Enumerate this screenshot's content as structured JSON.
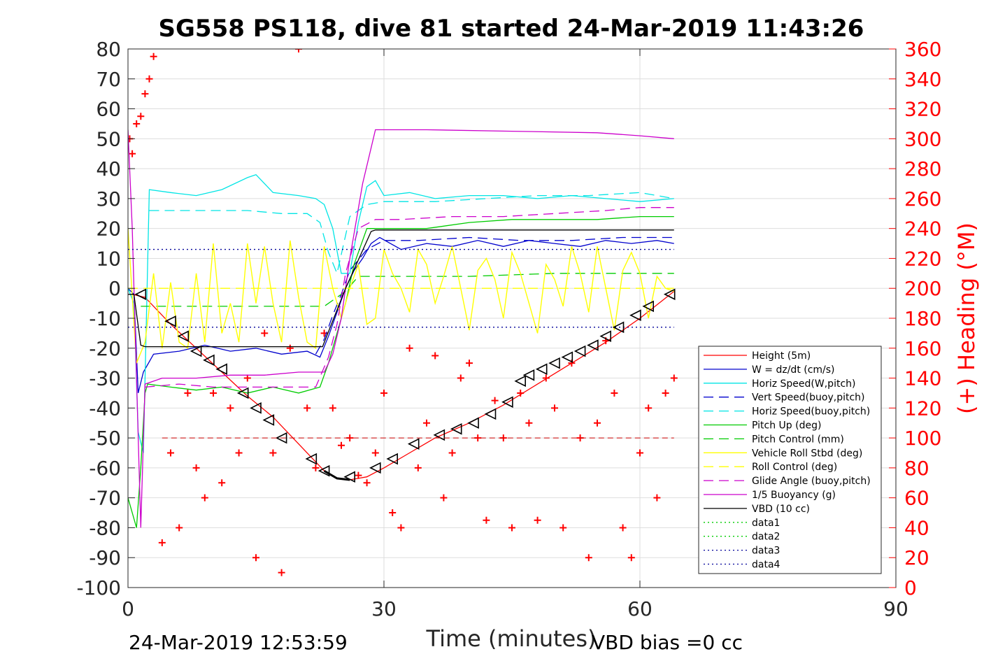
{
  "chart_data": {
    "type": "line",
    "title": "SG558 PS118, dive 81 started 24-Mar-2019 11:43:26",
    "xlabel": "Time (minutes)",
    "ylabel": "",
    "y2label": "(+) Heading (°M)",
    "xlim": [
      0,
      90
    ],
    "ylim": [
      -100,
      80
    ],
    "y2lim": [
      0,
      360
    ],
    "xticks": [
      "0",
      "30",
      "60",
      "90"
    ],
    "yticks": [
      "80",
      "70",
      "60",
      "50",
      "40",
      "30",
      "20",
      "10",
      "0",
      "-10",
      "-20",
      "-30",
      "-40",
      "-50",
      "-60",
      "-70",
      "-80",
      "-90",
      "-100"
    ],
    "y2ticks": [
      "360",
      "340",
      "320",
      "300",
      "280",
      "260",
      "240",
      "220",
      "200",
      "180",
      "160",
      "140",
      "120",
      "100",
      "80",
      "60",
      "40",
      "20",
      "0"
    ],
    "grid": true,
    "legend_position": "bottom-right",
    "footer_left": "24-Mar-2019 12:53:59",
    "footer_right": "VBD bias =0 cc",
    "colors": {
      "height": "#ff0000",
      "w": "#0000cd",
      "horiz_w": "#00e5e5",
      "vert_buoy": "#0000cd",
      "horiz_buoy": "#00e5e5",
      "pitch": "#00cc00",
      "pitch_ctl": "#00cc00",
      "roll": "#ffff00",
      "roll_ctl": "#ffff00",
      "glide": "#cc00cc",
      "buoy": "#cc00cc",
      "vbd": "#000000",
      "data1": "#00cc00",
      "data2": "#00cc00",
      "data3": "#000099",
      "data4": "#000099"
    },
    "series": [
      {
        "name": "Height (5m)",
        "key": "height",
        "style": "solid",
        "x": [
          0.5,
          2,
          5,
          8,
          11,
          14,
          17,
          20,
          23,
          24.5,
          26,
          28,
          30,
          33,
          36,
          40,
          44,
          48,
          52,
          56,
          60,
          64
        ],
        "y": [
          -2,
          -3,
          -12,
          -20,
          -28,
          -36,
          -43,
          -52,
          -61,
          -63.5,
          -64,
          -63,
          -60,
          -55,
          -50,
          -45,
          -39,
          -32,
          -25,
          -18,
          -10,
          -1
        ]
      },
      {
        "name": "W = dz/dt (cm/s)",
        "key": "w",
        "style": "solid",
        "x": [
          0,
          0.7,
          1.2,
          1.8,
          3,
          6,
          9,
          12,
          15,
          18,
          21,
          22.5,
          23.5,
          24.5,
          25.5,
          26.5,
          27.5,
          28.5,
          29.5,
          32,
          35,
          38,
          41,
          44,
          47,
          50,
          53,
          56,
          59,
          62,
          64
        ],
        "y": [
          0,
          -2,
          -35,
          -28,
          -22,
          -21,
          -19,
          -21,
          -20,
          -22,
          -21,
          -23,
          -16,
          -8,
          0,
          6,
          10,
          15,
          17,
          13,
          15,
          14,
          16,
          14,
          16,
          15,
          14,
          16,
          15,
          16,
          15
        ]
      },
      {
        "name": "Horiz Speed(W,pitch)",
        "key": "horiz_w",
        "style": "solid",
        "x": [
          0,
          0.7,
          1.2,
          1.8,
          2.5,
          5,
          8,
          11,
          14,
          15,
          17,
          20,
          22,
          23,
          24,
          25,
          26,
          27,
          28,
          29,
          30,
          33,
          36,
          40,
          44,
          48,
          52,
          56,
          60,
          64
        ],
        "y": [
          0,
          -5,
          -48,
          -55,
          33,
          32,
          31,
          33,
          37,
          38,
          32,
          31,
          30,
          28,
          20,
          5,
          5,
          22,
          34,
          36,
          31,
          32,
          30,
          31,
          31,
          30,
          31,
          30,
          29,
          30
        ]
      },
      {
        "name": "Vert Speed(buoy,pitch)",
        "key": "vert_buoy",
        "style": "dashed",
        "x": [
          22,
          23,
          24,
          25,
          26,
          28,
          30,
          34,
          40,
          46,
          52,
          58,
          62,
          64
        ],
        "y": [
          -22,
          -17,
          -9,
          -2,
          6,
          13,
          16,
          16,
          17,
          16,
          16,
          17,
          17,
          17
        ]
      },
      {
        "name": "Horiz Speed(buoy,pitch)",
        "key": "horiz_buoy",
        "style": "dashed",
        "x": [
          2.5,
          6,
          10,
          14,
          18,
          21,
          22.5,
          23.5,
          24.5,
          26,
          28,
          30,
          36,
          42,
          48,
          54,
          60,
          64
        ],
        "y": [
          26,
          26,
          26,
          26,
          25,
          25,
          22,
          12,
          5,
          24,
          28,
          29,
          29,
          30,
          31,
          31,
          32,
          30
        ]
      },
      {
        "name": "Pitch Up (deg)",
        "key": "pitch",
        "style": "solid",
        "x": [
          0,
          1,
          1.5,
          2,
          2.3,
          5,
          8,
          11,
          14,
          17,
          20,
          22.5,
          23.5,
          24.5,
          25.5,
          26.5,
          28,
          30,
          35,
          40,
          45,
          50,
          55,
          60,
          64
        ],
        "y": [
          -70,
          -80,
          -60,
          -35,
          -32,
          -33,
          -34,
          -33,
          -35,
          -33,
          -35,
          -33,
          -25,
          -15,
          -5,
          8,
          20,
          20,
          20,
          22,
          23,
          23,
          23,
          24,
          24
        ]
      },
      {
        "name": "Pitch Control (mm)",
        "key": "pitch_ctl",
        "style": "dashed",
        "x": [
          1.5,
          6,
          12,
          18,
          23,
          25.5,
          27,
          30,
          40,
          50,
          60,
          64
        ],
        "y": [
          -6,
          -6,
          -6,
          -6,
          -6,
          -1,
          4,
          4,
          4,
          5,
          5,
          5
        ]
      },
      {
        "name": "Vehicle Roll Stbd (deg)",
        "key": "roll",
        "style": "solid",
        "x": [
          0,
          1,
          2,
          3,
          4,
          5,
          6,
          7,
          8,
          9,
          10,
          11,
          12,
          13,
          14,
          15,
          16,
          17,
          18,
          19,
          20,
          21,
          22,
          23,
          24,
          25,
          26,
          27,
          28,
          29,
          30,
          31,
          32,
          33,
          34,
          35,
          36,
          37,
          38,
          39,
          40,
          41,
          42,
          43,
          44,
          45,
          46,
          47,
          48,
          49,
          50,
          51,
          52,
          53,
          54,
          55,
          56,
          57,
          58,
          59,
          60,
          61,
          62,
          63,
          64
        ],
        "y": [
          20,
          -25,
          -18,
          5,
          -20,
          2,
          -18,
          -20,
          5,
          -18,
          15,
          -15,
          -5,
          -18,
          15,
          -5,
          14,
          -5,
          -18,
          16,
          -3,
          -18,
          -20,
          14,
          0,
          -10,
          0,
          8,
          -12,
          -10,
          13,
          5,
          0,
          -8,
          13,
          8,
          -5,
          4,
          14,
          0,
          -14,
          6,
          10,
          3,
          -10,
          12,
          5,
          -5,
          -15,
          8,
          3,
          -6,
          14,
          5,
          -8,
          14,
          0,
          -14,
          6,
          12,
          5,
          -10,
          4,
          0,
          -1
        ]
      },
      {
        "name": "Roll Control (deg)",
        "key": "roll_ctl",
        "style": "dashed",
        "x": [
          0,
          64
        ],
        "y": [
          0,
          0
        ]
      },
      {
        "name": "Glide Angle (buoy,pitch)",
        "key": "glide",
        "style": "dashed",
        "x": [
          2,
          6,
          10,
          14,
          18,
          22,
          23.5,
          24.5,
          25.5,
          27,
          29,
          32,
          38,
          44,
          50,
          56,
          60,
          64
        ],
        "y": [
          -33,
          -32,
          -33,
          -33,
          -33,
          -33,
          -23,
          -12,
          5,
          20,
          23,
          23,
          24,
          24,
          25,
          26,
          27,
          27
        ]
      },
      {
        "name": "1/5 Buoyancy (g)",
        "key": "buoy",
        "style": "solid",
        "x": [
          0,
          0.5,
          1.5,
          2,
          4,
          8,
          12,
          16,
          20,
          23,
          24,
          25,
          26,
          27.5,
          29,
          35,
          45,
          55,
          60,
          64
        ],
        "y": [
          53,
          20,
          -80,
          -32,
          -30,
          -30,
          -29,
          -29,
          -28,
          -28,
          -22,
          -10,
          10,
          35,
          53,
          53,
          52.5,
          52,
          51,
          50
        ]
      },
      {
        "name": "VBD (10 cc)",
        "key": "vbd",
        "style": "solid",
        "x": [
          0,
          0.7,
          1.5,
          2,
          5,
          10,
          15,
          20,
          22.8,
          25.5,
          28.5,
          29,
          40,
          50,
          60,
          64
        ],
        "y": [
          -2,
          -2,
          -19,
          -19.5,
          -19.5,
          -19.5,
          -19.5,
          -19.5,
          -19.5,
          0,
          19,
          19.5,
          19.5,
          19.5,
          19.5,
          19.5
        ]
      },
      {
        "name": "data1",
        "key": "data1",
        "style": "dotted",
        "x": [],
        "y": []
      },
      {
        "name": "data2",
        "key": "data2",
        "style": "dotted",
        "x": [],
        "y": []
      },
      {
        "name": "data3",
        "key": "data3",
        "style": "dotted",
        "x": [
          0,
          64
        ],
        "y": [
          13,
          13
        ]
      },
      {
        "name": "data4",
        "key": "data4",
        "style": "dotted",
        "x": [
          0,
          64
        ],
        "y": [
          -13,
          -13
        ]
      }
    ],
    "heading": {
      "x": [
        0.2,
        0.5,
        1,
        1.5,
        2,
        2.5,
        3,
        4,
        5,
        6,
        7,
        8,
        9,
        10,
        11,
        12,
        13,
        14,
        15,
        16,
        17,
        18,
        19,
        20,
        21,
        22,
        23,
        24,
        25,
        26,
        27,
        28,
        29,
        30,
        31,
        32,
        33,
        34,
        35,
        36,
        37,
        38,
        39,
        40,
        41,
        42,
        43,
        44,
        45,
        46,
        47,
        48,
        49,
        50,
        51,
        52,
        53,
        54,
        55,
        56,
        57,
        58,
        59,
        60,
        61,
        62,
        63,
        64
      ],
      "y": [
        300,
        290,
        310,
        315,
        330,
        340,
        355,
        30,
        90,
        40,
        130,
        80,
        60,
        130,
        70,
        120,
        90,
        140,
        20,
        170,
        90,
        10,
        160,
        360,
        120,
        80,
        170,
        120,
        95,
        100,
        75,
        70,
        90,
        130,
        50,
        40,
        160,
        80,
        110,
        155,
        60,
        90,
        140,
        150,
        100,
        45,
        125,
        100,
        40,
        130,
        110,
        45,
        140,
        120,
        40,
        150,
        100,
        20,
        110,
        165,
        130,
        40,
        20,
        90,
        120,
        60,
        130,
        140
      ]
    },
    "markers": {
      "x": [
        1.5,
        5,
        6.5,
        8,
        9.5,
        11,
        13.5,
        15,
        16.5,
        18,
        21.5,
        23,
        26,
        29,
        31,
        33.5,
        36.5,
        38.5,
        40.5,
        42.5,
        44.5,
        46,
        47,
        48.5,
        50,
        51.5,
        53,
        54.5,
        56,
        57.5,
        59.5,
        61,
        63.5
      ],
      "y": [
        -2,
        -11,
        -16,
        -21,
        -24,
        -27,
        -35,
        -40,
        -44,
        -50,
        -57,
        -61,
        -63,
        -60,
        -57,
        -52,
        -49,
        -47,
        -45,
        -42,
        -38,
        -31,
        -29,
        -27,
        -25,
        -23,
        -21,
        -19,
        -16,
        -13,
        -9,
        -6,
        -2
      ]
    }
  }
}
